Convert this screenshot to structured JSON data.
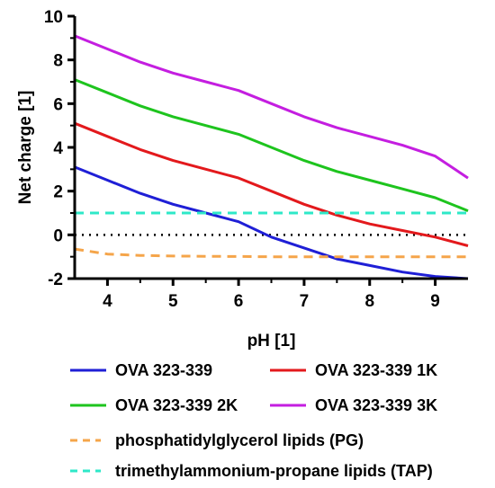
{
  "chart_data": {
    "type": "line",
    "xlabel": "pH [1]",
    "ylabel": "Net charge [1]",
    "xlim": [
      3.5,
      9.5
    ],
    "ylim": [
      -2,
      10
    ],
    "xticks": [
      4,
      5,
      6,
      7,
      8,
      9
    ],
    "yticks": [
      -2,
      0,
      2,
      4,
      6,
      8,
      10
    ],
    "grid": false,
    "legend_position": "bottom",
    "zero_line": {
      "y": 0,
      "style": "dotted",
      "color": "#000000"
    },
    "series": [
      {
        "name": "OVA 323-339",
        "color": "#1f1fd6",
        "style": "solid",
        "x": [
          3.5,
          4.0,
          4.5,
          5.0,
          5.5,
          6.0,
          6.5,
          7.0,
          7.5,
          8.0,
          8.5,
          9.0,
          9.5
        ],
        "y": [
          3.1,
          2.5,
          1.9,
          1.4,
          1.0,
          0.6,
          -0.1,
          -0.6,
          -1.1,
          -1.4,
          -1.7,
          -1.9,
          -2.0
        ]
      },
      {
        "name": "OVA 323-339 1K",
        "color": "#e3191c",
        "style": "solid",
        "x": [
          3.5,
          4.0,
          4.5,
          5.0,
          5.5,
          6.0,
          6.5,
          7.0,
          7.5,
          8.0,
          8.5,
          9.0,
          9.5
        ],
        "y": [
          5.1,
          4.5,
          3.9,
          3.4,
          3.0,
          2.6,
          2.0,
          1.4,
          0.9,
          0.5,
          0.2,
          -0.1,
          -0.5
        ]
      },
      {
        "name": "OVA 323-339 2K",
        "color": "#1ec41e",
        "style": "solid",
        "x": [
          3.5,
          4.0,
          4.5,
          5.0,
          5.5,
          6.0,
          6.5,
          7.0,
          7.5,
          8.0,
          8.5,
          9.0,
          9.5
        ],
        "y": [
          7.1,
          6.5,
          5.9,
          5.4,
          5.0,
          4.6,
          4.0,
          3.4,
          2.9,
          2.5,
          2.1,
          1.7,
          1.1
        ]
      },
      {
        "name": "OVA 323-339 3K",
        "color": "#c41ee0",
        "style": "solid",
        "x": [
          3.5,
          4.0,
          4.5,
          5.0,
          5.5,
          6.0,
          6.5,
          7.0,
          7.5,
          8.0,
          8.5,
          9.0,
          9.5
        ],
        "y": [
          9.1,
          8.5,
          7.9,
          7.4,
          7.0,
          6.6,
          6.0,
          5.4,
          4.9,
          4.5,
          4.1,
          3.6,
          2.6
        ]
      },
      {
        "name": "phosphatidylglycerol lipids (PG)",
        "color": "#f5a54a",
        "style": "dashed",
        "x": [
          3.5,
          4.0,
          4.5,
          5.0,
          5.5,
          6.0,
          6.5,
          7.0,
          7.5,
          8.0,
          8.5,
          9.0,
          9.5
        ],
        "y": [
          -0.65,
          -0.88,
          -0.94,
          -0.97,
          -0.98,
          -0.99,
          -1.0,
          -1.0,
          -1.0,
          -1.0,
          -1.0,
          -1.0,
          -1.0
        ]
      },
      {
        "name": "trimethylammonium-propane lipids (TAP)",
        "color": "#2ee8c8",
        "style": "dashed",
        "x": [
          3.5,
          9.5
        ],
        "y": [
          1.0,
          1.0
        ]
      }
    ]
  }
}
